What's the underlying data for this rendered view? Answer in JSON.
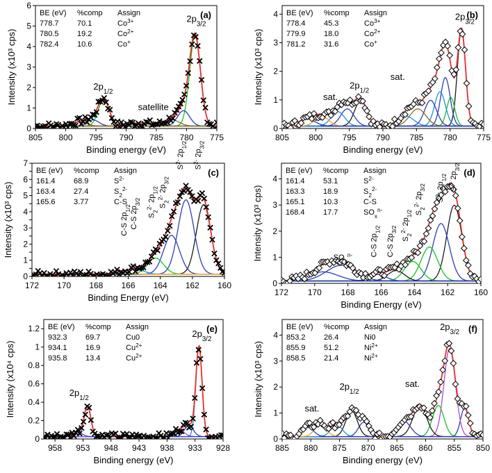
{
  "colors": {
    "envelope": "#e8302a",
    "background": "#9a9a9a",
    "component_1": "#1d8fe0",
    "component_2": "#2c3db5",
    "component_3": "#18c02a",
    "component_4": "#1a1a1a",
    "component_5": "#f0a020",
    "component_6": "#8a6a2a",
    "component_7": "#b04ad0"
  },
  "chart_data": [
    {
      "panel": "(a)",
      "type": "line",
      "xlabel": "Binding energy (eV)",
      "ylabel": "Intensity (x10³ cps)",
      "xlim": [
        805,
        775
      ],
      "ylim": [
        0,
        6
      ],
      "xticks": [
        805,
        800,
        795,
        790,
        785,
        780,
        775
      ],
      "yticks": [
        0,
        1,
        2,
        3,
        4,
        5,
        6
      ],
      "marker": "x",
      "table": {
        "header": [
          "BE (eV)",
          "%comp",
          "Assign"
        ],
        "rows": [
          [
            "778.7",
            "70.1",
            "Co3+"
          ],
          [
            "780.5",
            "19.2",
            "Co2+"
          ],
          [
            "782.4",
            "10.6",
            "Co+"
          ]
        ]
      },
      "annotations": [
        {
          "text": "2p3/2",
          "x": 778.4,
          "y": 5.2
        },
        {
          "text": "2p1/2",
          "x": 793.8,
          "y": 1.9
        },
        {
          "text": "satellite",
          "x": 785.5,
          "y": 0.9
        }
      ],
      "components": [
        {
          "center": 778.6,
          "height": 4.4,
          "width": 0.9,
          "color": "component_3"
        },
        {
          "center": 780.5,
          "height": 0.75,
          "width": 1.0,
          "color": "component_2"
        },
        {
          "center": 782.4,
          "height": 0.3,
          "width": 1.2,
          "color": "component_6"
        },
        {
          "center": 793.7,
          "height": 1.3,
          "width": 0.9,
          "color": "component_3"
        },
        {
          "center": 795.5,
          "height": 0.3,
          "width": 1.0,
          "color": "component_2"
        },
        {
          "center": 797.8,
          "height": 0.2,
          "width": 1.2,
          "color": "component_6"
        },
        {
          "center": 787.5,
          "height": 0.15,
          "width": 2.0,
          "color": "component_6"
        }
      ]
    },
    {
      "panel": "(b)",
      "type": "line",
      "xlabel": "Binding energy (eV)",
      "ylabel": "Intensity (x10³ cps)",
      "xlim": [
        805,
        775
      ],
      "ylim": [
        0,
        4.3
      ],
      "xticks": [
        805,
        800,
        795,
        790,
        785,
        780,
        775
      ],
      "yticks": [
        0,
        1,
        2,
        3,
        4
      ],
      "marker": "diamond",
      "table": {
        "header": [
          "BE (eV)",
          "%comp",
          "Assign"
        ],
        "rows": [
          [
            "778.4",
            "45.3",
            "Co3+"
          ],
          [
            "779.9",
            "18.0",
            "Co2+"
          ],
          [
            "781.2",
            "31.6",
            "Co+"
          ]
        ]
      },
      "annotations": [
        {
          "text": "2p3/2",
          "x": 777.8,
          "y": 3.8
        },
        {
          "text": "2p1/2",
          "x": 793.5,
          "y": 1.4
        },
        {
          "text": "sat.",
          "x": 797.8,
          "y": 1.0
        },
        {
          "text": "sat.",
          "x": 787.8,
          "y": 1.7
        }
      ],
      "components": [
        {
          "center": 778.3,
          "height": 3.4,
          "width": 0.6,
          "color": "component_4"
        },
        {
          "center": 779.9,
          "height": 1.0,
          "width": 0.6,
          "color": "component_3"
        },
        {
          "center": 780.7,
          "height": 1.7,
          "width": 0.7,
          "color": "component_2"
        },
        {
          "center": 781.5,
          "height": 1.2,
          "width": 0.8,
          "color": "component_1"
        },
        {
          "center": 782.9,
          "height": 0.9,
          "width": 0.9,
          "color": "component_2"
        },
        {
          "center": 784.8,
          "height": 0.6,
          "width": 1.2,
          "color": "component_6"
        },
        {
          "center": 786.6,
          "height": 0.35,
          "width": 1.2,
          "color": "component_1"
        },
        {
          "center": 793.3,
          "height": 0.9,
          "width": 0.9,
          "color": "component_4"
        },
        {
          "center": 795.3,
          "height": 0.6,
          "width": 1.0,
          "color": "component_2"
        },
        {
          "center": 796.7,
          "height": 0.5,
          "width": 1.0,
          "color": "component_1"
        },
        {
          "center": 799.1,
          "height": 0.35,
          "width": 1.0,
          "color": "component_5"
        },
        {
          "center": 801.3,
          "height": 0.25,
          "width": 1.2,
          "color": "component_2"
        }
      ]
    },
    {
      "panel": "(c)",
      "type": "line",
      "xlabel": "Binding Energy (eV)",
      "ylabel": "Intensity (x10³ cps)",
      "xlim": [
        172,
        160
      ],
      "ylim": [
        0,
        7
      ],
      "xticks": [
        172,
        170,
        168,
        166,
        164,
        162,
        160
      ],
      "yticks": [
        0,
        0.5,
        1,
        1.5,
        2,
        2.5,
        3,
        3.5,
        4,
        4.5,
        5,
        5.5,
        6,
        6.5,
        7
      ],
      "ytick_labels": [
        "0",
        "",
        "1",
        "",
        "2",
        "",
        "3",
        "",
        "4",
        "",
        "5",
        "",
        "6",
        "",
        "7"
      ],
      "marker": "x",
      "table": {
        "header": [
          "BE (eV)",
          "%comp",
          "Assign"
        ],
        "rows": [
          [
            "161.4",
            "68.9",
            "S2-"
          ],
          [
            "163.4",
            "27.4",
            "S22-"
          ],
          [
            "165.6",
            "3.77",
            "C-S"
          ]
        ]
      },
      "peak_labels": [
        "C-S 2p1/2",
        "C-S 2p3/2",
        "S22- 2p1/2",
        "S22- 2p3/2",
        "S2- 2p1/2",
        "S2- 2p3/2"
      ],
      "components": [
        {
          "center": 161.3,
          "height": 4.3,
          "width": 0.45,
          "color": "component_4"
        },
        {
          "center": 162.4,
          "height": 4.6,
          "width": 0.5,
          "color": "component_2"
        },
        {
          "center": 163.3,
          "height": 2.4,
          "width": 0.5,
          "color": "component_2"
        },
        {
          "center": 164.3,
          "height": 1.0,
          "width": 0.5,
          "color": "component_3"
        },
        {
          "center": 165.5,
          "height": 0.3,
          "width": 0.5,
          "color": "component_1"
        },
        {
          "center": 166.4,
          "height": 0.12,
          "width": 0.5,
          "color": "component_5"
        }
      ]
    },
    {
      "panel": "(d)",
      "type": "line",
      "xlabel": "Binding Energy (eV)",
      "ylabel": "Intensity (x10³ cps)",
      "xlim": [
        172,
        160
      ],
      "ylim": [
        0,
        4.6
      ],
      "xticks": [
        172,
        170,
        168,
        166,
        164,
        162,
        160
      ],
      "yticks": [
        0,
        1,
        2,
        3,
        4
      ],
      "marker": "diamond",
      "table": {
        "header": [
          "BE (eV)",
          "%comp",
          "Assign"
        ],
        "rows": [
          [
            "161.4",
            "53.1",
            "S2-"
          ],
          [
            "163.3",
            "18.9",
            "S22-"
          ],
          [
            "165.1",
            "10.3",
            "C-S"
          ],
          [
            "168.4",
            "17.7",
            "SOxn-"
          ]
        ]
      },
      "peak_labels": [
        "SOxn-",
        "C-S 2p1/2",
        "C-S 2p3/2",
        "S22- 2p1/2",
        "S22- 2p3/2",
        "S2- 2p1/2",
        "S2- 2p3/2"
      ],
      "components": [
        {
          "center": 161.6,
          "height": 2.9,
          "width": 0.45,
          "color": "component_4"
        },
        {
          "center": 162.4,
          "height": 2.2,
          "width": 0.5,
          "color": "component_2"
        },
        {
          "center": 163.1,
          "height": 1.3,
          "width": 0.5,
          "color": "component_3"
        },
        {
          "center": 164.1,
          "height": 0.75,
          "width": 0.5,
          "color": "component_3"
        },
        {
          "center": 165.1,
          "height": 0.4,
          "width": 0.5,
          "color": "component_4"
        },
        {
          "center": 166.2,
          "height": 0.25,
          "width": 0.5,
          "color": "component_2"
        },
        {
          "center": 168.4,
          "height": 0.6,
          "width": 0.9,
          "color": "component_2"
        },
        {
          "center": 169.5,
          "height": 0.35,
          "width": 0.9,
          "color": "component_2"
        }
      ]
    },
    {
      "panel": "(e)",
      "type": "line",
      "xlabel": "Binding energy (eV)",
      "ylabel": "Intensity (x10⁴ cps)",
      "xlim": [
        960,
        928
      ],
      "ylim": [
        0,
        1.3
      ],
      "xticks": [
        958,
        953,
        948,
        943,
        938,
        933,
        928
      ],
      "yticks": [
        0,
        0.2,
        0.4,
        0.6,
        0.8,
        1,
        1.2
      ],
      "marker": "x",
      "table": {
        "header": [
          "BE (eV)",
          "%comp",
          "Assign"
        ],
        "rows": [
          [
            "932.3",
            "69.7",
            "Cu0"
          ],
          [
            "934.1",
            "16.9",
            "Cu2+"
          ],
          [
            "935.8",
            "13.4",
            "Cu2+"
          ]
        ]
      },
      "annotations": [
        {
          "text": "2p3/2",
          "x": 931.8,
          "y": 1.11
        },
        {
          "text": "2p1/2",
          "x": 953.7,
          "y": 0.47
        }
      ],
      "components": [
        {
          "center": 932.3,
          "height": 0.98,
          "width": 0.55,
          "color": "component_1"
        },
        {
          "center": 934.1,
          "height": 0.12,
          "width": 0.8,
          "color": "component_2"
        },
        {
          "center": 935.8,
          "height": 0.07,
          "width": 0.9,
          "color": "component_7"
        },
        {
          "center": 952.2,
          "height": 0.33,
          "width": 0.6,
          "color": "component_1"
        },
        {
          "center": 954.0,
          "height": 0.05,
          "width": 0.8,
          "color": "component_2"
        }
      ]
    },
    {
      "panel": "(f)",
      "type": "line",
      "xlabel": "Binding energy (eV)",
      "ylabel": "Intensity (x10³ cps)",
      "xlim": [
        885,
        850
      ],
      "ylim": [
        0,
        4.6
      ],
      "xticks": [
        885,
        880,
        875,
        870,
        865,
        860,
        855,
        850
      ],
      "yticks": [
        0,
        1,
        2,
        3,
        4
      ],
      "marker": "diamond",
      "table": {
        "header": [
          "BE (eV)",
          "%comp",
          "Assign"
        ],
        "rows": [
          [
            "853.2",
            "26.4",
            "Ni0"
          ],
          [
            "855.9",
            "51.2",
            "Ni2+"
          ],
          [
            "858.5",
            "21.4",
            "Ni2+"
          ]
        ]
      },
      "annotations": [
        {
          "text": "2p3/2",
          "x": 855.8,
          "y": 4.2
        },
        {
          "text": "2p1/2",
          "x": 873.3,
          "y": 1.9
        },
        {
          "text": "sat.",
          "x": 862.3,
          "y": 2.0
        },
        {
          "text": "sat.",
          "x": 879.8,
          "y": 1.05
        }
      ],
      "components": [
        {
          "center": 853.2,
          "height": 1.1,
          "width": 0.7,
          "color": "component_2"
        },
        {
          "center": 855.8,
          "height": 3.4,
          "width": 1.0,
          "color": "component_7"
        },
        {
          "center": 857.8,
          "height": 1.2,
          "width": 1.0,
          "color": "component_3"
        },
        {
          "center": 861.0,
          "height": 1.2,
          "width": 1.2,
          "color": "component_4"
        },
        {
          "center": 863.8,
          "height": 0.6,
          "width": 1.2,
          "color": "component_2"
        },
        {
          "center": 870.8,
          "height": 0.55,
          "width": 0.9,
          "color": "component_2"
        },
        {
          "center": 872.9,
          "height": 1.0,
          "width": 1.0,
          "color": "component_4"
        },
        {
          "center": 875.5,
          "height": 0.45,
          "width": 1.0,
          "color": "component_1"
        },
        {
          "center": 878.3,
          "height": 0.5,
          "width": 1.0,
          "color": "component_5"
        },
        {
          "center": 880.5,
          "height": 0.35,
          "width": 1.0,
          "color": "component_2"
        }
      ]
    }
  ]
}
